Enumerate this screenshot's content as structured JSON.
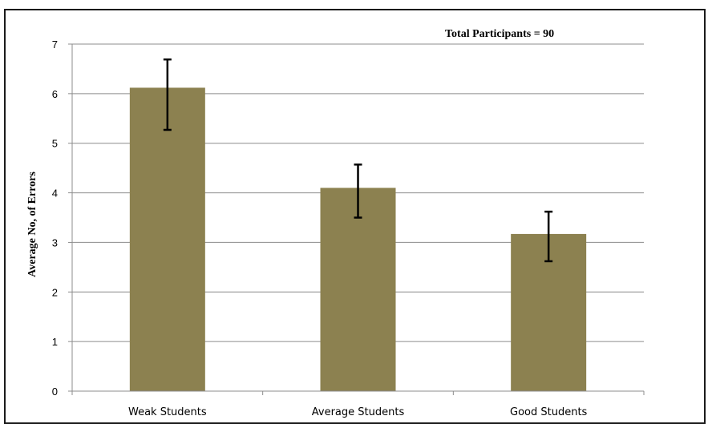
{
  "chart_data": {
    "type": "bar",
    "categories": [
      "Weak Students",
      "Average Students",
      "Good Students"
    ],
    "values": [
      6.12,
      4.1,
      3.17
    ],
    "error_low": [
      5.27,
      3.5,
      2.62
    ],
    "error_high": [
      6.69,
      4.57,
      3.62
    ],
    "yticks": [
      "0",
      "1",
      "2",
      "3",
      "4",
      "5",
      "6",
      "7"
    ],
    "ylabel": "Average No, of Errors",
    "annotation": "Total Participants = 90",
    "ylim": [
      0,
      7
    ],
    "grid": true,
    "bar_color": "#8c8150",
    "gridline_color": "#8c8c8c"
  }
}
